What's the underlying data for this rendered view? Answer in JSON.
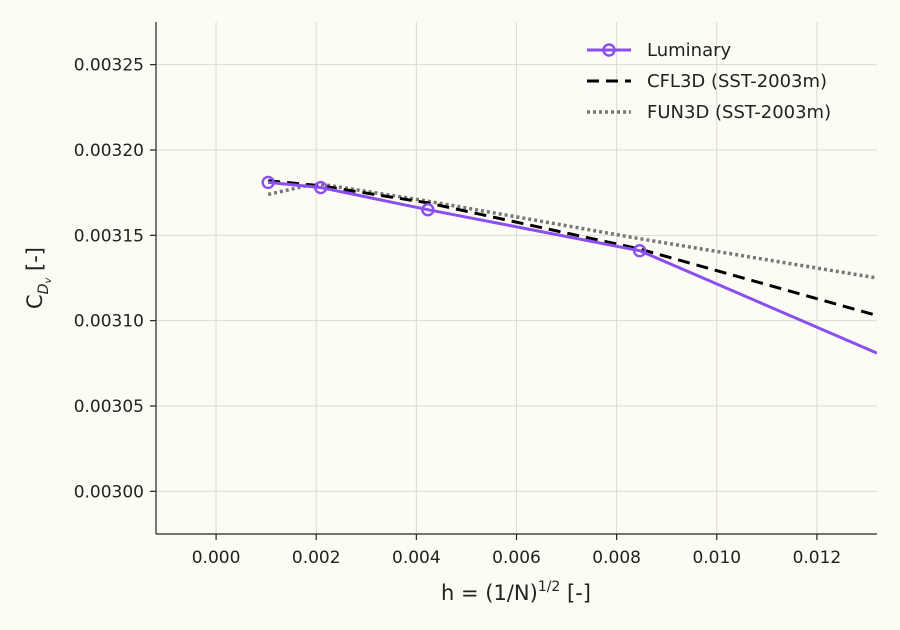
{
  "chart_data": {
    "type": "line",
    "xlabel_main": "h = (1/N)",
    "xlabel_sup": "1/2",
    "xlabel_tail": " [-]",
    "ylabel_main": "C",
    "ylabel_sub": "D",
    "ylabel_subsub": "v",
    "ylabel_tail": " [-]",
    "xlim": [
      -0.0012,
      0.0132
    ],
    "ylim": [
      0.002975,
      0.003275
    ],
    "xticks": [
      0.0,
      0.002,
      0.004,
      0.006,
      0.008,
      0.01,
      0.012
    ],
    "xtick_labels": [
      "0.000",
      "0.002",
      "0.004",
      "0.006",
      "0.008",
      "0.010",
      "0.012"
    ],
    "yticks": [
      0.003,
      0.00305,
      0.0031,
      0.00315,
      0.0032,
      0.00325
    ],
    "ytick_labels": [
      "0.00300",
      "0.00305",
      "0.00310",
      "0.00315",
      "0.00320",
      "0.00325"
    ],
    "grid": true,
    "legend_position": "top-right",
    "series": [
      {
        "name": "Luminary",
        "color": "#8b4ff0",
        "style": "solid-markers",
        "x": [
          0.00104,
          0.00209,
          0.00423,
          0.00846,
          0.0132
        ],
        "y": [
          0.003181,
          0.003178,
          0.003165,
          0.003141,
          0.003081
        ],
        "markers": [
          true,
          true,
          true,
          true,
          false
        ]
      },
      {
        "name": "CFL3D (SST-2003m)",
        "color": "#000000",
        "style": "dashed",
        "x": [
          0.00104,
          0.00209,
          0.00423,
          0.00846,
          0.0132
        ],
        "y": [
          0.003182,
          0.003179,
          0.003169,
          0.003142,
          0.003103
        ],
        "markers": [
          false,
          false,
          false,
          false,
          false
        ]
      },
      {
        "name": "FUN3D (SST-2003m)",
        "color": "#777777",
        "style": "dotted",
        "x": [
          0.00104,
          0.0018,
          0.00209,
          0.00423,
          0.00846,
          0.0132
        ],
        "y": [
          0.003174,
          0.003179,
          0.00318,
          0.00317,
          0.003148,
          0.003125
        ],
        "markers": [
          false,
          false,
          false,
          false,
          false,
          false
        ]
      }
    ]
  }
}
